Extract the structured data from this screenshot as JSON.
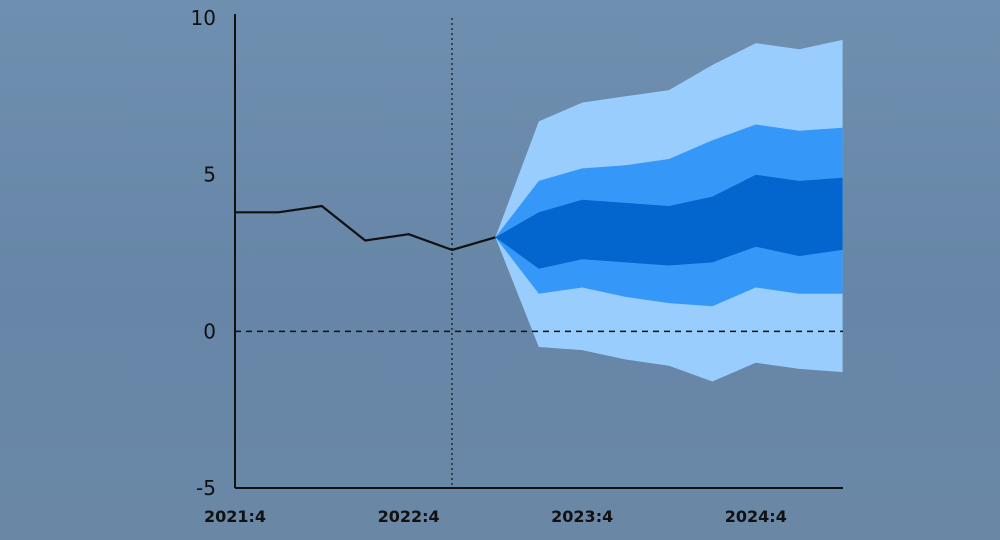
{
  "colors": {
    "background": "#6a88a8",
    "band_outer": "#99cdfd",
    "band_middle": "#3598f9",
    "band_inner": "#0366cf",
    "history_line": "#111111",
    "axis": "#111111"
  },
  "chart_data": {
    "type": "area",
    "title": "",
    "xlabel": "",
    "ylabel": "",
    "ylim": [
      -5,
      10
    ],
    "yticks": [
      "10",
      "5",
      "0",
      "-5"
    ],
    "xticks": [
      "2021:4",
      "2022:4",
      "2023:4",
      "2024:4"
    ],
    "periods": [
      "2021:4",
      "2022:1",
      "2022:2",
      "2022:3",
      "2022:4",
      "2023:1",
      "2023:2",
      "2023:3",
      "2023:4",
      "2024:1",
      "2024:2",
      "2024:3",
      "2024:4",
      "2025:1",
      "2025:2"
    ],
    "forecast_start": "2022:4",
    "zero_line": "dashed",
    "history": {
      "x": [
        "2021:4",
        "2022:1",
        "2022:2",
        "2022:3",
        "2022:4",
        "2023:1",
        "2023:2"
      ],
      "values": [
        3.8,
        3.8,
        4.0,
        2.9,
        3.1,
        2.6,
        3.0
      ]
    },
    "fan": {
      "x": [
        "2023:2",
        "2023:3",
        "2023:4",
        "2024:1",
        "2024:2",
        "2024:3",
        "2024:4",
        "2025:1",
        "2025:2"
      ],
      "bands": [
        {
          "band": "outer",
          "upper": [
            3.0,
            6.7,
            7.3,
            7.5,
            7.7,
            8.5,
            9.2,
            9.0,
            9.3
          ],
          "lower": [
            3.0,
            -0.5,
            -0.6,
            -0.9,
            -1.1,
            -1.6,
            -1.0,
            -1.2,
            -1.3
          ]
        },
        {
          "band": "middle",
          "upper": [
            3.0,
            4.8,
            5.2,
            5.3,
            5.5,
            6.1,
            6.6,
            6.4,
            6.5
          ],
          "lower": [
            3.0,
            1.2,
            1.4,
            1.1,
            0.9,
            0.8,
            1.4,
            1.2,
            1.2
          ]
        },
        {
          "band": "inner",
          "upper": [
            3.0,
            3.8,
            4.2,
            4.1,
            4.0,
            4.3,
            5.0,
            4.8,
            4.9
          ],
          "lower": [
            3.0,
            2.0,
            2.3,
            2.2,
            2.1,
            2.2,
            2.7,
            2.4,
            2.6
          ]
        }
      ]
    },
    "grid": false,
    "legend": "none"
  }
}
